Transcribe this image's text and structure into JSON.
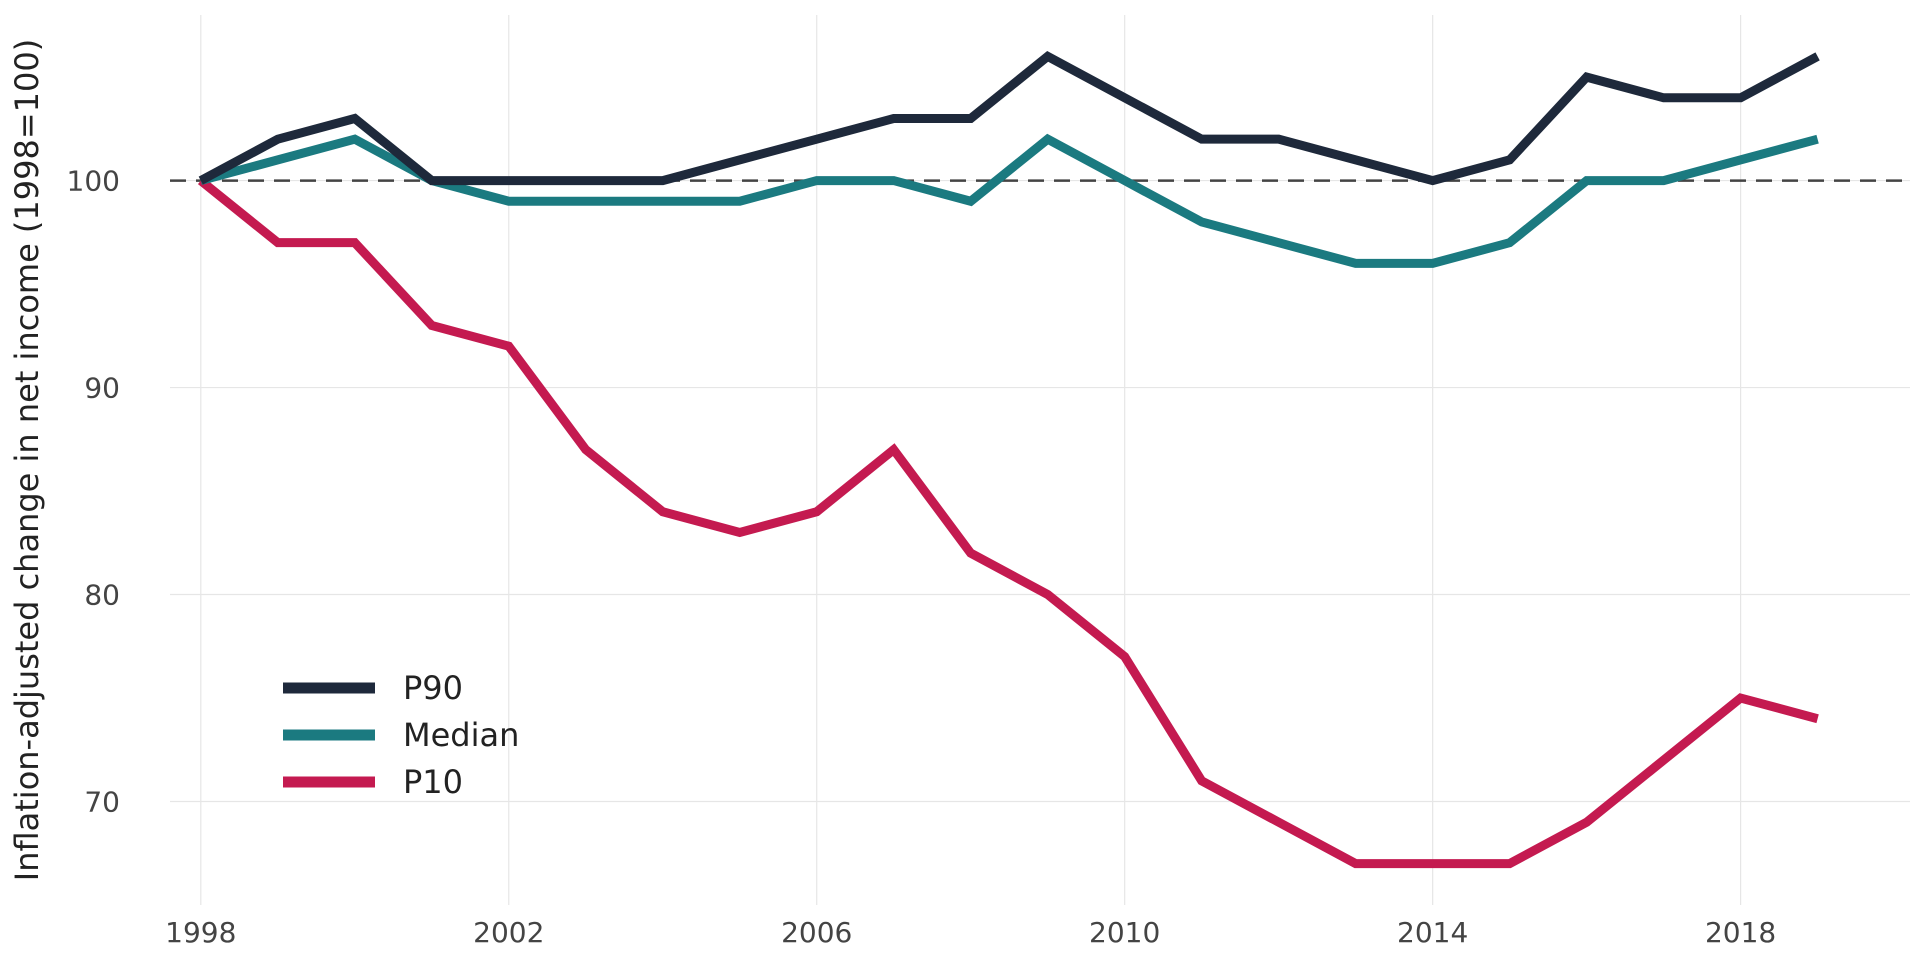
{
  "chart_data": {
    "type": "line",
    "title": "",
    "xlabel": "",
    "ylabel": "Inflation-adjusted change in net income (1998=100)",
    "x": [
      1998,
      1999,
      2000,
      2001,
      2002,
      2003,
      2004,
      2005,
      2006,
      2007,
      2008,
      2009,
      2010,
      2011,
      2012,
      2013,
      2014,
      2015,
      2016,
      2017,
      2018,
      2019
    ],
    "series": [
      {
        "name": "P90",
        "color": "#1e293b",
        "values": [
          100,
          102,
          103,
          100,
          100,
          100,
          100,
          101,
          102,
          103,
          103,
          106,
          104,
          102,
          102,
          101,
          100,
          101,
          105,
          104,
          104,
          106
        ]
      },
      {
        "name": "Median",
        "color": "#1b7a80",
        "values": [
          100,
          101,
          102,
          100,
          99,
          99,
          99,
          99,
          100,
          100,
          99,
          102,
          100,
          98,
          97,
          96,
          96,
          97,
          100,
          100,
          101,
          102
        ]
      },
      {
        "name": "P10",
        "color": "#c41a50",
        "values": [
          100,
          97,
          97,
          93,
          92,
          87,
          84,
          83,
          84,
          87,
          82,
          80,
          77,
          71,
          69,
          67,
          67,
          67,
          69,
          72,
          75,
          74
        ]
      }
    ],
    "x_ticks": [
      "1998",
      "2002",
      "2006",
      "2010",
      "2014",
      "2018"
    ],
    "y_ticks": [
      "70",
      "80",
      "90",
      "100"
    ],
    "xlim": [
      1997.6,
      2020.2
    ],
    "ylim": [
      65,
      108
    ],
    "reference_line": {
      "y": 100,
      "style": "dashed",
      "color": "#444444"
    },
    "grid": true,
    "legend_placement": "bottom-left"
  }
}
